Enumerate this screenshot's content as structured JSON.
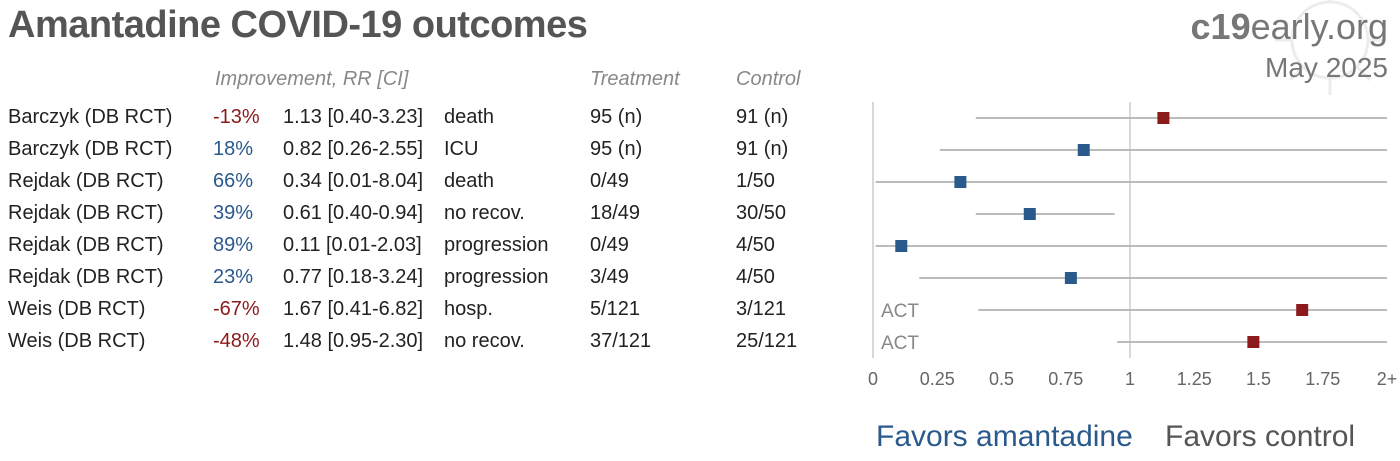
{
  "header": {
    "title": "Amantadine COVID-19 outcomes",
    "brand_bold": "c19",
    "brand_rest": "early.org",
    "date": "May 2025"
  },
  "columns": {
    "improvement": "Improvement, RR [CI]",
    "treatment": "Treatment",
    "control": "Control"
  },
  "rows": [
    {
      "study": "Barczyk (DB RCT)",
      "improvement": "-13%",
      "rr": "1.13 [0.40-3.23]",
      "outcome": "death",
      "treatment": "95 (n)",
      "control": "91 (n)"
    },
    {
      "study": "Barczyk (DB RCT)",
      "improvement": "18%",
      "rr": "0.82 [0.26-2.55]",
      "outcome": "ICU",
      "treatment": "95 (n)",
      "control": "91 (n)"
    },
    {
      "study": "Rejdak (DB RCT)",
      "improvement": "66%",
      "rr": "0.34 [0.01-8.04]",
      "outcome": "death",
      "treatment": "0/49",
      "control": "1/50"
    },
    {
      "study": "Rejdak (DB RCT)",
      "improvement": "39%",
      "rr": "0.61 [0.40-0.94]",
      "outcome": "no recov.",
      "treatment": "18/49",
      "control": "30/50"
    },
    {
      "study": "Rejdak (DB RCT)",
      "improvement": "89%",
      "rr": "0.11 [0.01-2.03]",
      "outcome": "progression",
      "treatment": "0/49",
      "control": "4/50"
    },
    {
      "study": "Rejdak (DB RCT)",
      "improvement": "23%",
      "rr": "0.77 [0.18-3.24]",
      "outcome": "progression",
      "treatment": "3/49",
      "control": "4/50"
    },
    {
      "study": "Weis (DB RCT)",
      "improvement": "-67%",
      "rr": "1.67 [0.41-6.82]",
      "outcome": "hosp.",
      "treatment": "5/121",
      "control": "3/121"
    },
    {
      "study": "Weis (DB RCT)",
      "improvement": "-48%",
      "rr": "1.48 [0.95-2.30]",
      "outcome": "no recov.",
      "treatment": "37/121",
      "control": "25/121"
    }
  ],
  "chart_data": {
    "type": "scatter",
    "subtype": "forest-plot",
    "x_ticks": [
      "0",
      "0.25",
      "0.5",
      "0.75",
      "1",
      "1.25",
      "1.5",
      "1.75",
      "2+"
    ],
    "xlim": [
      0,
      2
    ],
    "reference_line": 1,
    "points": [
      {
        "rr": 1.13,
        "lo": 0.4,
        "hi": 3.23,
        "tag": ""
      },
      {
        "rr": 0.82,
        "lo": 0.26,
        "hi": 2.55,
        "tag": ""
      },
      {
        "rr": 0.34,
        "lo": 0.01,
        "hi": 8.04,
        "tag": ""
      },
      {
        "rr": 0.61,
        "lo": 0.4,
        "hi": 0.94,
        "tag": ""
      },
      {
        "rr": 0.11,
        "lo": 0.01,
        "hi": 2.03,
        "tag": ""
      },
      {
        "rr": 0.77,
        "lo": 0.18,
        "hi": 3.24,
        "tag": ""
      },
      {
        "rr": 1.67,
        "lo": 0.41,
        "hi": 6.82,
        "tag": "ACT"
      },
      {
        "rr": 1.48,
        "lo": 0.95,
        "hi": 2.3,
        "tag": "ACT"
      }
    ],
    "favors_left": "Favors amantadine",
    "favors_right": "Favors control",
    "colors": {
      "favors_treatment": "#2a5a8c",
      "favors_control": "#8b1a1a",
      "ci_line": "#bbbbbb"
    }
  }
}
